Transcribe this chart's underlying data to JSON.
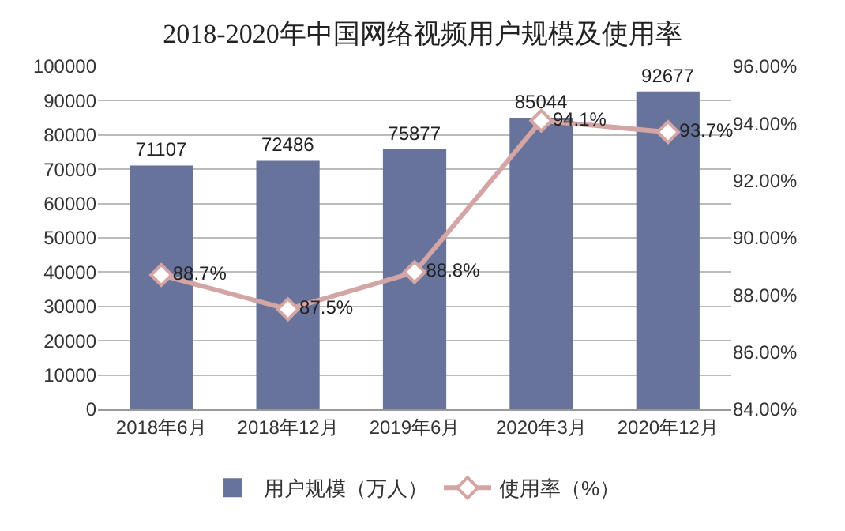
{
  "chart_data": {
    "type": "bar",
    "title": "2018-2020年中国网络视频用户规模及使用率",
    "categories": [
      "2018年6月",
      "2018年12月",
      "2019年6月",
      "2020年3月",
      "2020年12月"
    ],
    "series": [
      {
        "name": "用户规模（万人）",
        "color": "#67739a",
        "values": [
          71107,
          72486,
          75877,
          85044,
          92677
        ],
        "value_labels": [
          "71107",
          "72486",
          "75877",
          "85044",
          "92677"
        ]
      },
      {
        "name": "使用率（%）",
        "type": "line",
        "axis": "y2",
        "color": "#d4a5a5",
        "marker": "diamond",
        "values": [
          88.7,
          87.5,
          88.8,
          94.1,
          93.7
        ],
        "value_labels": [
          "88.7%",
          "87.5%",
          "88.8%",
          "94.1%",
          "93.7%"
        ]
      }
    ],
    "ylim": [
      0,
      100000
    ],
    "yticks": [
      0,
      10000,
      20000,
      30000,
      40000,
      50000,
      60000,
      70000,
      80000,
      90000,
      100000
    ],
    "y2lim": [
      84,
      96
    ],
    "y2ticks": [
      {
        "value": 84,
        "label": "84.00%"
      },
      {
        "value": 86,
        "label": "86.00%"
      },
      {
        "value": 88,
        "label": "88.00%"
      },
      {
        "value": 90,
        "label": "90.00%"
      },
      {
        "value": 92,
        "label": "92.00%"
      },
      {
        "value": 94,
        "label": "94.00%"
      },
      {
        "value": 96,
        "label": "96.00%"
      }
    ],
    "grid": "y",
    "legend": "bottom"
  }
}
